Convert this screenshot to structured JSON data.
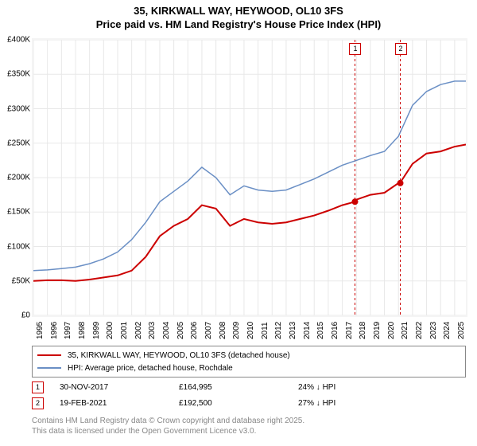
{
  "title": {
    "line1": "35, KIRKWALL WAY, HEYWOOD, OL10 3FS",
    "line2": "Price paid vs. HM Land Registry's House Price Index (HPI)"
  },
  "chart": {
    "type": "line",
    "background_color": "#f4f4f4",
    "plot_bg": "#ffffff",
    "ylim": [
      0,
      400
    ],
    "ytick_step": 50,
    "ytick_labels": [
      "£0",
      "£50K",
      "£100K",
      "£150K",
      "£200K",
      "£250K",
      "£300K",
      "£350K",
      "£400K"
    ],
    "xlim": [
      1995,
      2025.8
    ],
    "xtick_step": 1,
    "xtick_labels": [
      "1995",
      "1996",
      "1997",
      "1998",
      "1999",
      "2000",
      "2001",
      "2002",
      "2003",
      "2004",
      "2005",
      "2006",
      "2007",
      "2008",
      "2009",
      "2010",
      "2011",
      "2012",
      "2013",
      "2014",
      "2015",
      "2016",
      "2017",
      "2018",
      "2019",
      "2020",
      "2021",
      "2022",
      "2023",
      "2024",
      "2025"
    ],
    "series": [
      {
        "name": "subject",
        "color": "#cc0000",
        "line_width": 2,
        "data": [
          [
            1995,
            50
          ],
          [
            1996,
            51
          ],
          [
            1997,
            51
          ],
          [
            1998,
            50
          ],
          [
            1999,
            52
          ],
          [
            2000,
            55
          ],
          [
            2001,
            58
          ],
          [
            2002,
            65
          ],
          [
            2003,
            85
          ],
          [
            2004,
            115
          ],
          [
            2005,
            130
          ],
          [
            2006,
            140
          ],
          [
            2007,
            160
          ],
          [
            2008,
            155
          ],
          [
            2009,
            130
          ],
          [
            2010,
            140
          ],
          [
            2011,
            135
          ],
          [
            2012,
            133
          ],
          [
            2013,
            135
          ],
          [
            2014,
            140
          ],
          [
            2015,
            145
          ],
          [
            2016,
            152
          ],
          [
            2017,
            160
          ],
          [
            2017.9,
            165
          ],
          [
            2018,
            168
          ],
          [
            2019,
            175
          ],
          [
            2020,
            178
          ],
          [
            2021,
            192
          ],
          [
            2021.1,
            192
          ],
          [
            2022,
            220
          ],
          [
            2023,
            235
          ],
          [
            2024,
            238
          ],
          [
            2025,
            245
          ],
          [
            2025.8,
            248
          ]
        ]
      },
      {
        "name": "hpi",
        "color": "#6a8fc5",
        "line_width": 1.5,
        "data": [
          [
            1995,
            65
          ],
          [
            1996,
            66
          ],
          [
            1997,
            68
          ],
          [
            1998,
            70
          ],
          [
            1999,
            75
          ],
          [
            2000,
            82
          ],
          [
            2001,
            92
          ],
          [
            2002,
            110
          ],
          [
            2003,
            135
          ],
          [
            2004,
            165
          ],
          [
            2005,
            180
          ],
          [
            2006,
            195
          ],
          [
            2007,
            215
          ],
          [
            2008,
            200
          ],
          [
            2009,
            175
          ],
          [
            2010,
            188
          ],
          [
            2011,
            182
          ],
          [
            2012,
            180
          ],
          [
            2013,
            182
          ],
          [
            2014,
            190
          ],
          [
            2015,
            198
          ],
          [
            2016,
            208
          ],
          [
            2017,
            218
          ],
          [
            2018,
            225
          ],
          [
            2019,
            232
          ],
          [
            2020,
            238
          ],
          [
            2021,
            260
          ],
          [
            2022,
            305
          ],
          [
            2023,
            325
          ],
          [
            2024,
            335
          ],
          [
            2025,
            340
          ],
          [
            2025.8,
            340
          ]
        ]
      }
    ],
    "sale_markers": [
      {
        "n": "1",
        "x": 2017.9,
        "y": 165,
        "dash_color": "#cc0000"
      },
      {
        "n": "2",
        "x": 2021.13,
        "y": 192,
        "dash_color": "#cc0000"
      }
    ],
    "sale_dot_color": "#cc0000",
    "sale_dot_radius": 4
  },
  "legend": {
    "items": [
      {
        "color": "#cc0000",
        "width": 2,
        "label": "35, KIRKWALL WAY, HEYWOOD, OL10 3FS (detached house)"
      },
      {
        "color": "#6a8fc5",
        "width": 1.5,
        "label": "HPI: Average price, detached house, Rochdale"
      }
    ]
  },
  "sales": [
    {
      "n": "1",
      "date": "30-NOV-2017",
      "price": "£164,995",
      "delta": "24% ↓ HPI"
    },
    {
      "n": "2",
      "date": "19-FEB-2021",
      "price": "£192,500",
      "delta": "27% ↓ HPI"
    }
  ],
  "footer": {
    "line1": "Contains HM Land Registry data © Crown copyright and database right 2025.",
    "line2": "This data is licensed under the Open Government Licence v3.0."
  }
}
